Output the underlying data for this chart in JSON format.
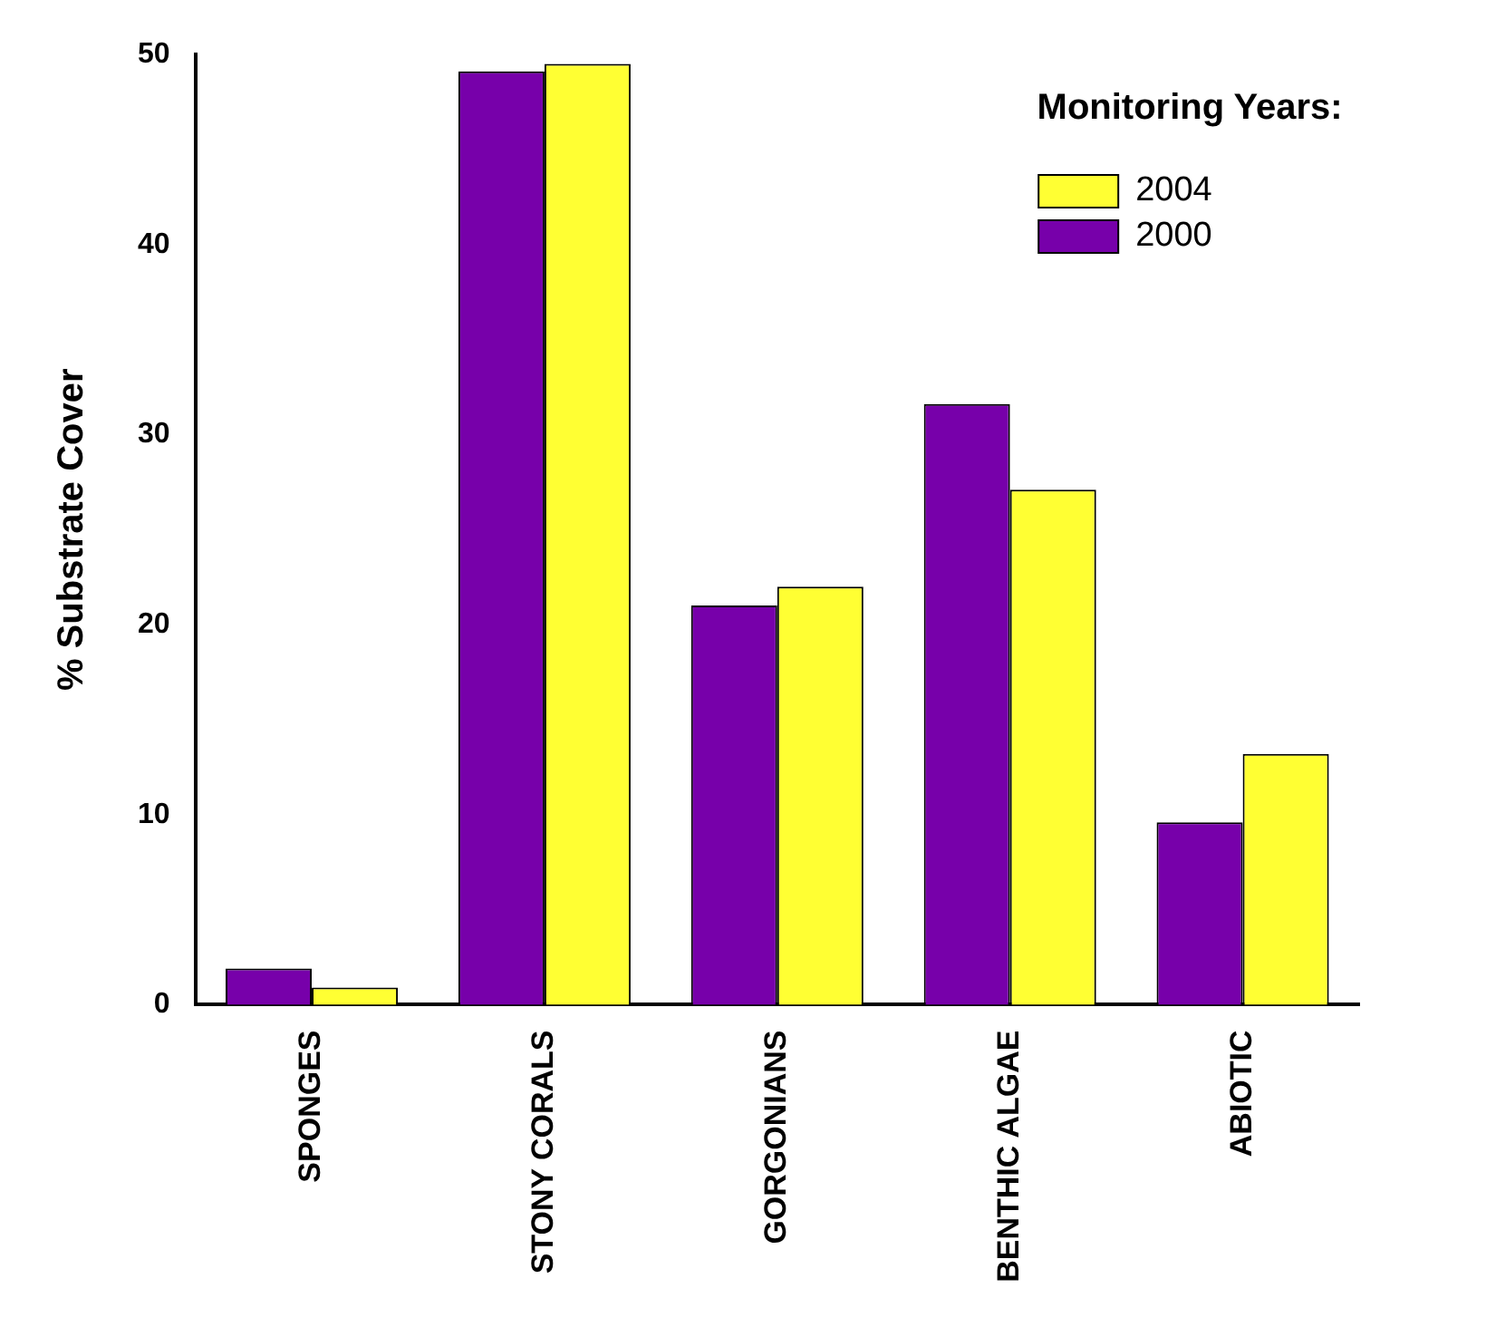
{
  "chart_data": {
    "type": "bar",
    "ylabel": "% Substrate Cover",
    "legend_title": "Monitoring Years:",
    "categories": [
      "SPONGES",
      "STONY CORALS",
      "GORGONIANS",
      "BENTHIC ALGAE",
      "ABIOTIC"
    ],
    "series": [
      {
        "name": "2000",
        "color": "#7700aa",
        "values": [
          1.9,
          49.1,
          21.0,
          31.6,
          9.6
        ]
      },
      {
        "name": "2004",
        "color": "#ffff33",
        "values": [
          0.9,
          49.5,
          22.0,
          27.1,
          13.2
        ]
      }
    ],
    "ylim": [
      0,
      50
    ],
    "yticks": [
      0,
      10,
      20,
      30,
      40,
      50
    ],
    "grid": false,
    "legend": "top right"
  }
}
